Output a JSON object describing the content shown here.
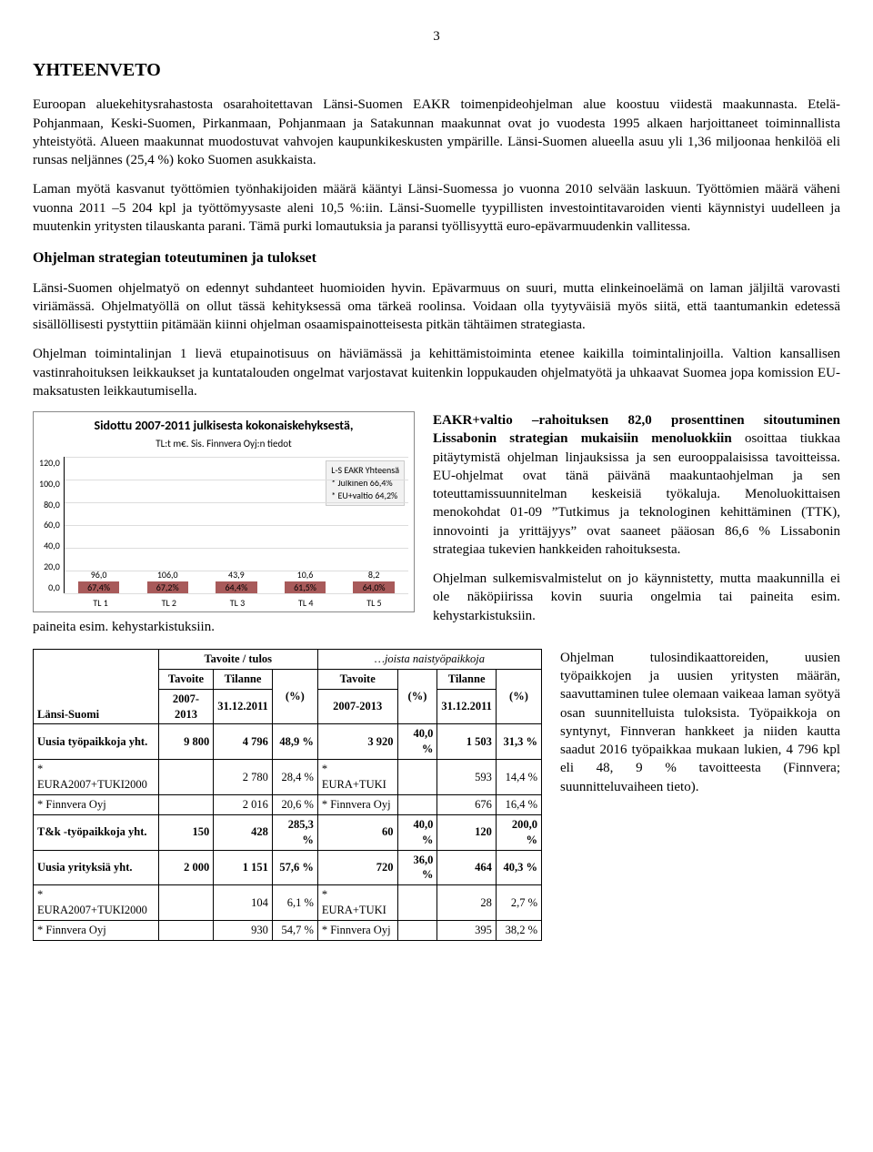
{
  "page_number": "3",
  "title": "YHTEENVETO",
  "paragraphs": {
    "p1": "Euroopan aluekehitysrahastosta osarahoitettavan Länsi-Suomen EAKR toimenpideohjelman alue koostuu viidestä maakunnasta. Etelä-Pohjanmaan, Keski-Suomen, Pirkanmaan, Pohjanmaan ja Satakunnan maakunnat ovat jo vuodesta 1995 alkaen harjoittaneet toiminnallista yhteistyötä. Alueen maakunnat muodostuvat vahvojen kaupunkikeskusten ympärille. Länsi-Suomen alueella asuu yli 1,36 miljoonaa henkilöä eli runsas neljännes (25,4 %) koko Suomen asukkaista.",
    "p2": "Laman myötä kasvanut työttömien työnhakijoiden määrä kääntyi Länsi-Suomessa jo vuonna 2010 selvään laskuun. Työttömien määrä väheni vuonna 2011 –5 204 kpl ja työttömyysaste aleni 10,5 %:iin. Länsi-Suomelle tyypillisten investointitavaroiden vienti käynnistyi uudelleen ja muutenkin yritysten tilauskanta parani. Tämä purki lomautuksia ja paransi työllisyyttä euro-epävarmuudenkin vallitessa.",
    "section_title": "Ohjelman strategian toteutuminen ja tulokset",
    "p3": "Länsi-Suomen ohjelmatyö on edennyt suhdanteet huomioiden hyvin. Epävarmuus on suuri, mutta elinkeinoelämä on laman jäljiltä varovasti viriämässä. Ohjelmatyöllä on ollut tässä kehityksessä oma tärkeä roolinsa. Voidaan olla tyytyväisiä myös siitä, että taantumankin edetessä sisällöllisesti pystyttiin pitämään kiinni ohjelman osaamispainotteisesta pitkän tähtäimen strategiasta.",
    "p4": "Ohjelman toimintalinjan 1 lievä etupainotisuus on häviämässä ja kehittämistoiminta etenee kaikilla toimintalinjoilla. Valtion kansallisen vastinrahoituksen leikkaukset ja kuntatalouden ongelmat varjostavat kuitenkin loppukauden ohjelmatyötä ja uhkaavat Suomea jopa komission EU-maksatusten leikkautumisella."
  },
  "chart": {
    "title": "Sidottu 2007-2011 julkisesta kokonaiskehyksestä,",
    "subtitle": "TL:t m€. Sis. Finnvera Oyj:n tiedot",
    "ymax": 120,
    "ylabels": [
      "120,0",
      "100,0",
      "80,0",
      "60,0",
      "40,0",
      "20,0",
      "0,0"
    ],
    "categories": [
      "TL 1",
      "TL 2",
      "TL 3",
      "TL 4",
      "TL 5"
    ],
    "values": [
      96.0,
      106.0,
      43.9,
      10.6,
      8.2
    ],
    "value_labels": [
      "96,0",
      "106,0",
      "43,9",
      "10,6",
      "8,2"
    ],
    "pct_labels": [
      "67,4%",
      "67,2%",
      "64,4%",
      "61,5%",
      "64,0%"
    ],
    "bar_color": "#a85a5a",
    "grid_color": "#dddddd",
    "bg_color": "#ffffff",
    "legend": {
      "l1": "L-S EAKR Yhteensä",
      "l2": "* Julkinen 66,4%",
      "l3": "* EU+valtio 64,2%"
    }
  },
  "right_text": {
    "r1": "EAKR+valtio –rahoituksen 82,0 prosenttinen sitoutuminen Lissabonin strategian mukaisiin menoluokkiin osoittaa tiukkaa pitäytymistä ohjelman linjauksissa ja sen eurooppalaisissa tavoitteissa. EU-ohjelmat ovat tänä päivänä maakuntaohjelman ja sen toteuttamissuunnitelman keskeisiä työkaluja. Menoluokittaisen menokohdat 01-09 ”Tutkimus ja teknologinen kehittäminen (TTK), innovointi ja yrittäjyys” ovat saaneet pääosan 86,6 % Lissabonin strategiaa tukevien hankkeiden rahoituksesta.",
    "r2": "Ohjelman sulkemisvalmistelut on jo käynnistetty, mutta maakunnilla ei ole näköpiirissa kovin suuria ongelmia tai paineita esim. kehystarkistuksiin."
  },
  "below_chart_tail": "paineita esim. kehystarkistuksiin.",
  "table": {
    "region_label": "Länsi-Suomi",
    "head_group1": "Tavoite / tulos",
    "head_group2": "…joista naistyöpaikkoja",
    "col_tavoite": "Tavoite",
    "col_period": "2007-2013",
    "col_tilanne": "Tilanne",
    "col_date": "31.12.2011",
    "col_pct": "(%)",
    "rows": [
      {
        "label": "Uusia työpaikkoja yht.",
        "v": [
          "9 800",
          "4 796",
          "48,9 %",
          "3 920",
          "40,0 %",
          "1 503",
          "31,3 %"
        ],
        "group": true
      },
      {
        "label": "* EURA2007+TUKI2000",
        "v": [
          "",
          "2 780",
          "28,4 %",
          "* EURA+TUKI",
          "",
          "593",
          "14,4 %"
        ],
        "group": false
      },
      {
        "label": "* Finnvera Oyj",
        "v": [
          "",
          "2 016",
          "20,6 %",
          "* Finnvera Oyj",
          "",
          "676",
          "16,4 %"
        ],
        "group": false
      },
      {
        "label": "T&k -työpaikkoja yht.",
        "v": [
          "150",
          "428",
          "285,3 %",
          "60",
          "40,0 %",
          "120",
          "200,0 %"
        ],
        "group": true
      },
      {
        "label": "Uusia yrityksiä yht.",
        "v": [
          "2 000",
          "1 151",
          "57,6 %",
          "720",
          "36,0 %",
          "464",
          "40,3 %"
        ],
        "group": true
      },
      {
        "label": "* EURA2007+TUKI2000",
        "v": [
          "",
          "104",
          "6,1 %",
          "* EURA+TUKI",
          "",
          "28",
          "2,7 %"
        ],
        "group": false
      },
      {
        "label": "* Finnvera Oyj",
        "v": [
          "",
          "930",
          "54,7 %",
          "* Finnvera Oyj",
          "",
          "395",
          "38,2 %"
        ],
        "group": false
      }
    ]
  },
  "results_side": "Ohjelman tulosindikaattoreiden, uusien työpaikkojen ja uusien yritysten määrän, saavuttaminen tulee olemaan vaikeaa laman syötyä osan suunnitelluista tuloksista. Työpaikkoja on syntynyt, Finnveran hankkeet ja niiden kautta saadut 2016 työpaikkaa mukaan lukien, 4 796 kpl eli 48, 9 % tavoitteesta (Finnvera; suunnitteluvaiheen tieto)."
}
